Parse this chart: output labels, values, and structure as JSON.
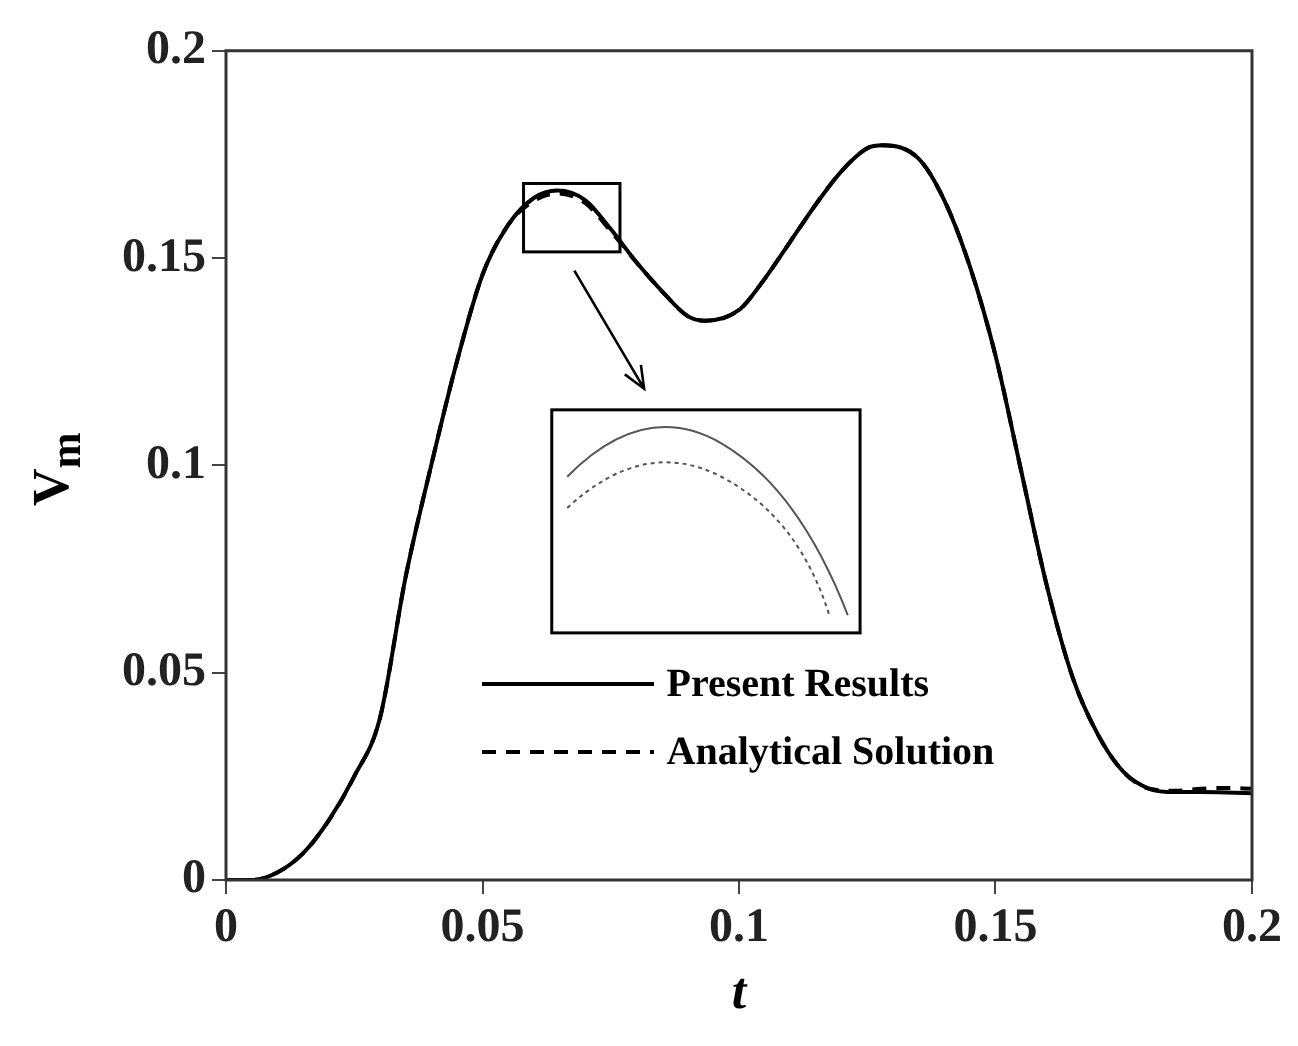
{
  "chart_data": {
    "type": "line",
    "xlabel": "t",
    "ylabel": "V$_{m}$",
    "xlim": [
      0,
      0.2
    ],
    "ylim": [
      0,
      0.2
    ],
    "xticks": [
      0,
      0.05,
      0.1,
      0.15,
      0.2
    ],
    "yticks": [
      0,
      0.05,
      0.1,
      0.15,
      0.2
    ],
    "grid": false,
    "legend": "bottom",
    "marker": "none",
    "x": [
      0,
      0.005,
      0.01,
      0.015,
      0.02,
      0.025,
      0.03,
      0.035,
      0.04,
      0.045,
      0.05,
      0.055,
      0.06,
      0.0646,
      0.07,
      0.075,
      0.08,
      0.085,
      0.09,
      0.0934,
      0.1,
      0.105,
      0.11,
      0.115,
      0.12,
      0.125,
      0.128,
      0.135,
      0.14,
      0.145,
      0.15,
      0.155,
      0.16,
      0.165,
      0.17,
      0.175,
      0.18,
      0.185,
      0.19,
      0.195,
      0.2
    ],
    "series": [
      {
        "name": "Present Results",
        "color": "#000000",
        "line_style": "solid",
        "values": [
          0,
          0,
          0.0018,
          0.0064,
          0.0143,
          0.025,
          0.039,
          0.073,
          0.1,
          0.125,
          0.146,
          0.158,
          0.1645,
          0.1663,
          0.164,
          0.157,
          0.149,
          0.142,
          0.136,
          0.1349,
          0.1375,
          0.145,
          0.154,
          0.163,
          0.171,
          0.1765,
          0.1772,
          0.174,
          0.164,
          0.148,
          0.1265,
          0.0987,
          0.071,
          0.049,
          0.035,
          0.026,
          0.022,
          0.0212,
          0.0212,
          0.0211,
          0.0209
        ]
      },
      {
        "name": "Analytical Solution",
        "color": "#000000",
        "line_style": "dashed",
        "values": [
          0,
          0,
          0.0018,
          0.0064,
          0.0143,
          0.025,
          0.039,
          0.073,
          0.1,
          0.125,
          0.146,
          0.158,
          0.1638,
          0.1656,
          0.1633,
          0.1565,
          0.149,
          0.142,
          0.136,
          0.1349,
          0.1375,
          0.145,
          0.154,
          0.163,
          0.171,
          0.1765,
          0.1772,
          0.174,
          0.164,
          0.148,
          0.1265,
          0.0987,
          0.071,
          0.049,
          0.035,
          0.026,
          0.022,
          0.0215,
          0.022,
          0.0222,
          0.022
        ]
      }
    ]
  }
}
